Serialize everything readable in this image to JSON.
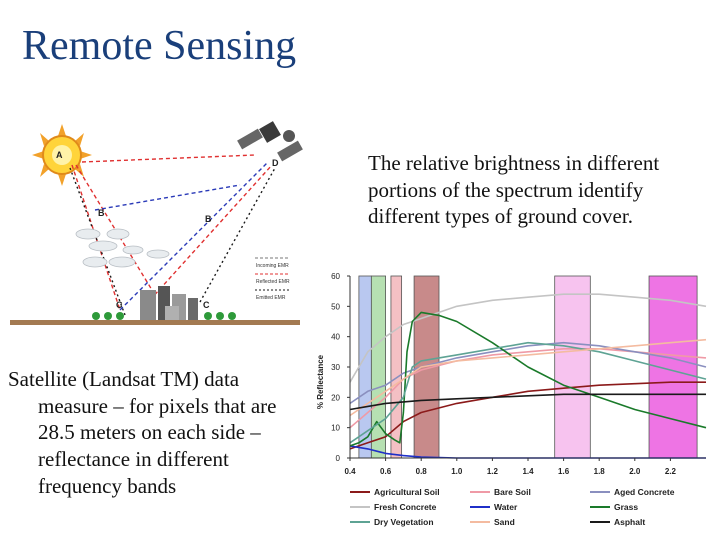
{
  "slide": {
    "title": "Remote Sensing",
    "right_text": "The relative brightness in different portions of the spectrum identify different types of ground cover.",
    "left_text_line1": "Satellite (Landsat TM) data",
    "left_text_rest": "measure – for pixels that are 28.5 meters on each side – reflectance in different frequency bands"
  },
  "diagram": {
    "labels": [
      "A",
      "B",
      "B",
      "C",
      "C",
      "D"
    ],
    "legend": [
      "Incoming EMR",
      "Reflected EMR",
      "Emitted EMR"
    ]
  },
  "chart_data": {
    "type": "line",
    "ylabel": "% Reflectance",
    "xlabel": "",
    "xlim": [
      0.4,
      2.4
    ],
    "ylim": [
      0,
      60
    ],
    "x_ticks": [
      "0.4",
      "0.6",
      "0.8",
      "1.0",
      "1.2",
      "1.4",
      "1.6",
      "1.8",
      "2.0",
      "2.2"
    ],
    "y_ticks": [
      "0",
      "10",
      "20",
      "30",
      "40",
      "50",
      "60"
    ],
    "bands": [
      {
        "from": 0.45,
        "to": 0.52,
        "color": "#b9c8f0"
      },
      {
        "from": 0.52,
        "to": 0.6,
        "color": "#b6e0b2"
      },
      {
        "from": 0.63,
        "to": 0.69,
        "color": "#f4c0c4"
      },
      {
        "from": 0.76,
        "to": 0.9,
        "color": "#c88a8a"
      },
      {
        "from": 1.55,
        "to": 1.75,
        "color": "#f7c3ef"
      },
      {
        "from": 2.08,
        "to": 2.35,
        "color": "#ee74e4"
      }
    ],
    "series": [
      {
        "name": "Agricultural Soil",
        "color": "#8b1a1a",
        "x": [
          0.4,
          0.5,
          0.6,
          0.7,
          0.8,
          1.0,
          1.2,
          1.4,
          1.6,
          1.8,
          2.0,
          2.2,
          2.4
        ],
        "y": [
          3,
          5,
          7,
          12,
          15,
          18,
          20,
          22,
          23,
          24,
          24.5,
          25,
          25
        ]
      },
      {
        "name": "Bare Soil",
        "color": "#ef9aa6",
        "x": [
          0.4,
          0.5,
          0.6,
          0.7,
          0.8,
          1.0,
          1.2,
          1.4,
          1.6,
          1.8,
          2.0,
          2.2,
          2.4
        ],
        "y": [
          10,
          15,
          20,
          26,
          29,
          32,
          34,
          35,
          36,
          36,
          35,
          34,
          33
        ]
      },
      {
        "name": "Aged Concrete",
        "color": "#8a8fbf",
        "x": [
          0.4,
          0.5,
          0.6,
          0.7,
          0.8,
          1.0,
          1.2,
          1.4,
          1.6,
          1.8,
          2.0,
          2.2,
          2.4
        ],
        "y": [
          18,
          22,
          24,
          28,
          30,
          33,
          35,
          37,
          38,
          37,
          35,
          33,
          30
        ]
      },
      {
        "name": "Fresh Concrete",
        "color": "#c4c4c4",
        "x": [
          0.4,
          0.5,
          0.6,
          0.7,
          0.8,
          1.0,
          1.2,
          1.4,
          1.6,
          1.8,
          2.0,
          2.2,
          2.4
        ],
        "y": [
          25,
          35,
          40,
          44,
          46,
          50,
          52,
          53,
          54,
          54,
          53,
          52,
          50
        ]
      },
      {
        "name": "Water",
        "color": "#1f2fc8",
        "x": [
          0.4,
          0.5,
          0.6,
          0.7,
          0.8,
          1.0,
          1.2,
          1.4,
          1.6,
          1.8,
          2.0,
          2.2,
          2.4
        ],
        "y": [
          4,
          3,
          1.5,
          0.8,
          0.3,
          0,
          0,
          0,
          0,
          0,
          0,
          0,
          0
        ]
      },
      {
        "name": "Grass",
        "color": "#1a7a2a",
        "x": [
          0.4,
          0.45,
          0.5,
          0.55,
          0.6,
          0.65,
          0.68,
          0.7,
          0.72,
          0.75,
          0.8,
          0.9,
          1.0,
          1.2,
          1.4,
          1.6,
          1.8,
          2.0,
          2.2,
          2.4
        ],
        "y": [
          4,
          5,
          7,
          12,
          8,
          6,
          5,
          15,
          35,
          45,
          48,
          47,
          45,
          38,
          30,
          24,
          20,
          16,
          13,
          10
        ]
      },
      {
        "name": "Dry Vegetation",
        "color": "#5ea394",
        "x": [
          0.4,
          0.5,
          0.6,
          0.7,
          0.75,
          0.8,
          1.0,
          1.2,
          1.4,
          1.6,
          1.8,
          2.0,
          2.2,
          2.4
        ],
        "y": [
          5,
          9,
          13,
          20,
          30,
          32,
          34,
          36,
          38,
          37,
          35,
          32,
          29,
          26
        ]
      },
      {
        "name": "Sand",
        "color": "#f4bba0",
        "x": [
          0.4,
          0.5,
          0.6,
          0.7,
          0.8,
          1.0,
          1.2,
          1.4,
          1.6,
          1.8,
          2.0,
          2.2,
          2.4
        ],
        "y": [
          14,
          18,
          22,
          26,
          30,
          32,
          33,
          34,
          35,
          36,
          37,
          38,
          39
        ]
      },
      {
        "name": "Asphalt",
        "color": "#1a1a1a",
        "x": [
          0.4,
          0.5,
          0.6,
          0.8,
          1.0,
          1.2,
          1.4,
          1.6,
          1.8,
          2.0,
          2.2,
          2.4
        ],
        "y": [
          16,
          17,
          18,
          19,
          19.5,
          20,
          20.5,
          21,
          21,
          21,
          21,
          21
        ]
      }
    ]
  }
}
